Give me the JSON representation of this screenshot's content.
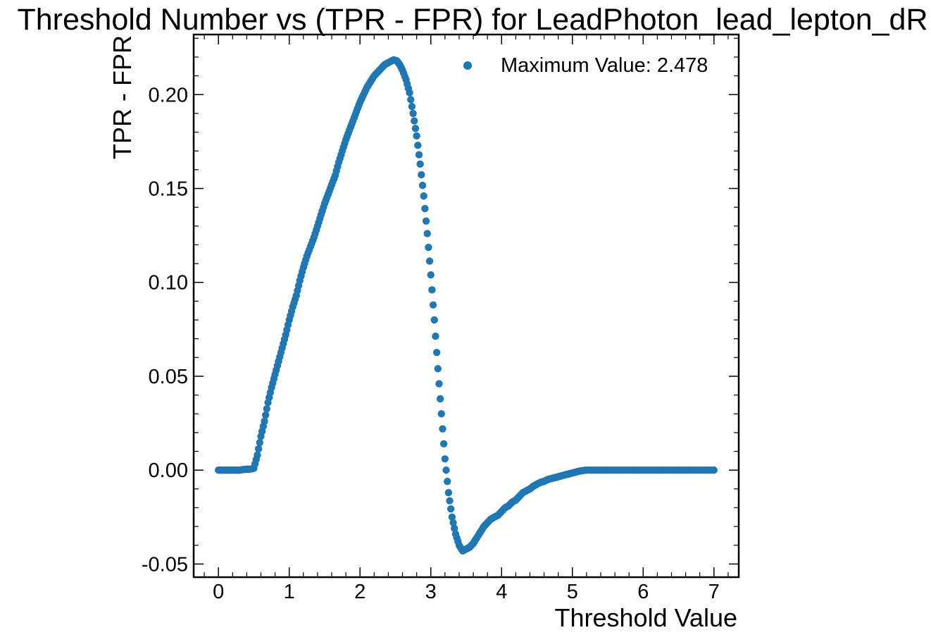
{
  "chart_data": {
    "type": "scatter",
    "title": "Threshold Number vs (TPR - FPR) for LeadPhoton_lead_lepton_dR",
    "xlabel": "Threshold Value",
    "ylabel": "TPR - FPR",
    "xlim": [
      -0.35,
      7.35
    ],
    "ylim": [
      -0.057,
      0.232
    ],
    "x_ticks": [
      0,
      1,
      2,
      3,
      4,
      5,
      6,
      7
    ],
    "x_tick_labels": [
      "0",
      "1",
      "2",
      "3",
      "4",
      "5",
      "6",
      "7"
    ],
    "y_ticks": [
      -0.05,
      0.0,
      0.05,
      0.1,
      0.15,
      0.2
    ],
    "y_tick_labels": [
      "-0.05",
      "0.00",
      "0.05",
      "0.10",
      "0.15",
      "0.20"
    ],
    "grid": false,
    "legend": {
      "position": "top-right",
      "entries": [
        "Maximum Value: 2.478"
      ]
    },
    "series": [
      {
        "name": "Maximum Value: 2.478",
        "color": "#1f77b4",
        "points": [
          [
            0.0,
            0.0
          ],
          [
            0.05,
            0.0
          ],
          [
            0.1,
            0.0
          ],
          [
            0.15,
            0.0
          ],
          [
            0.2,
            0.0
          ],
          [
            0.25,
            0.0
          ],
          [
            0.3,
            0.0
          ],
          [
            0.35,
            0.0003
          ],
          [
            0.4,
            0.0005
          ],
          [
            0.45,
            0.0005
          ],
          [
            0.5,
            0.001
          ],
          [
            0.55,
            0.008
          ],
          [
            0.6,
            0.018
          ],
          [
            0.65,
            0.026
          ],
          [
            0.7,
            0.036
          ],
          [
            0.75,
            0.044
          ],
          [
            0.8,
            0.051
          ],
          [
            0.85,
            0.058
          ],
          [
            0.9,
            0.065
          ],
          [
            0.95,
            0.072
          ],
          [
            1.0,
            0.08
          ],
          [
            1.05,
            0.087
          ],
          [
            1.1,
            0.093
          ],
          [
            1.15,
            0.101
          ],
          [
            1.2,
            0.108
          ],
          [
            1.25,
            0.114
          ],
          [
            1.3,
            0.119
          ],
          [
            1.35,
            0.124
          ],
          [
            1.4,
            0.13
          ],
          [
            1.45,
            0.136
          ],
          [
            1.5,
            0.142
          ],
          [
            1.55,
            0.147
          ],
          [
            1.6,
            0.152
          ],
          [
            1.65,
            0.157
          ],
          [
            1.7,
            0.164
          ],
          [
            1.75,
            0.17
          ],
          [
            1.8,
            0.176
          ],
          [
            1.85,
            0.181
          ],
          [
            1.9,
            0.186
          ],
          [
            1.95,
            0.191
          ],
          [
            2.0,
            0.196
          ],
          [
            2.05,
            0.2
          ],
          [
            2.1,
            0.204
          ],
          [
            2.15,
            0.207
          ],
          [
            2.2,
            0.21
          ],
          [
            2.25,
            0.212
          ],
          [
            2.3,
            0.214
          ],
          [
            2.35,
            0.216
          ],
          [
            2.4,
            0.217
          ],
          [
            2.45,
            0.218
          ],
          [
            2.478,
            0.2185
          ],
          [
            2.52,
            0.218
          ],
          [
            2.56,
            0.216
          ],
          [
            2.6,
            0.213
          ],
          [
            2.65,
            0.208
          ],
          [
            2.7,
            0.201
          ],
          [
            2.75,
            0.19
          ],
          [
            2.8,
            0.178
          ],
          [
            2.85,
            0.163
          ],
          [
            2.9,
            0.146
          ],
          [
            2.95,
            0.126
          ],
          [
            3.0,
            0.104
          ],
          [
            3.05,
            0.08
          ],
          [
            3.1,
            0.054
          ],
          [
            3.15,
            0.03
          ],
          [
            3.2,
            0.006
          ],
          [
            3.25,
            -0.012
          ],
          [
            3.3,
            -0.025
          ],
          [
            3.35,
            -0.034
          ],
          [
            3.4,
            -0.04
          ],
          [
            3.45,
            -0.043
          ],
          [
            3.5,
            -0.042
          ],
          [
            3.55,
            -0.041
          ],
          [
            3.6,
            -0.039
          ],
          [
            3.65,
            -0.036
          ],
          [
            3.7,
            -0.033
          ],
          [
            3.75,
            -0.03
          ],
          [
            3.8,
            -0.028
          ],
          [
            3.85,
            -0.026
          ],
          [
            3.9,
            -0.025
          ],
          [
            3.95,
            -0.024
          ],
          [
            4.0,
            -0.022
          ],
          [
            4.05,
            -0.02
          ],
          [
            4.1,
            -0.019
          ],
          [
            4.15,
            -0.017
          ],
          [
            4.2,
            -0.016
          ],
          [
            4.25,
            -0.014
          ],
          [
            4.3,
            -0.012
          ],
          [
            4.35,
            -0.011
          ],
          [
            4.4,
            -0.01
          ],
          [
            4.45,
            -0.0085
          ],
          [
            4.5,
            -0.0075
          ],
          [
            4.55,
            -0.0065
          ],
          [
            4.6,
            -0.006
          ],
          [
            4.65,
            -0.005
          ],
          [
            4.7,
            -0.0045
          ],
          [
            4.75,
            -0.004
          ],
          [
            4.8,
            -0.0035
          ],
          [
            4.85,
            -0.003
          ],
          [
            4.9,
            -0.0025
          ],
          [
            4.95,
            -0.002
          ],
          [
            5.0,
            -0.0015
          ],
          [
            5.05,
            -0.001
          ],
          [
            5.1,
            -0.0005
          ],
          [
            5.15,
            -0.0002
          ],
          [
            5.2,
            0.0
          ],
          [
            5.3,
            0.0
          ],
          [
            5.4,
            0.0
          ],
          [
            5.5,
            0.0
          ],
          [
            5.6,
            0.0
          ],
          [
            5.7,
            0.0
          ],
          [
            5.8,
            0.0
          ],
          [
            5.9,
            0.0
          ],
          [
            6.0,
            0.0
          ],
          [
            6.1,
            0.0
          ],
          [
            6.2,
            0.0
          ],
          [
            6.3,
            0.0
          ],
          [
            6.4,
            0.0
          ],
          [
            6.5,
            0.0
          ],
          [
            6.6,
            0.0
          ],
          [
            6.7,
            0.0
          ],
          [
            6.8,
            0.0
          ],
          [
            6.9,
            0.0
          ],
          [
            7.0,
            0.0
          ]
        ]
      }
    ]
  }
}
